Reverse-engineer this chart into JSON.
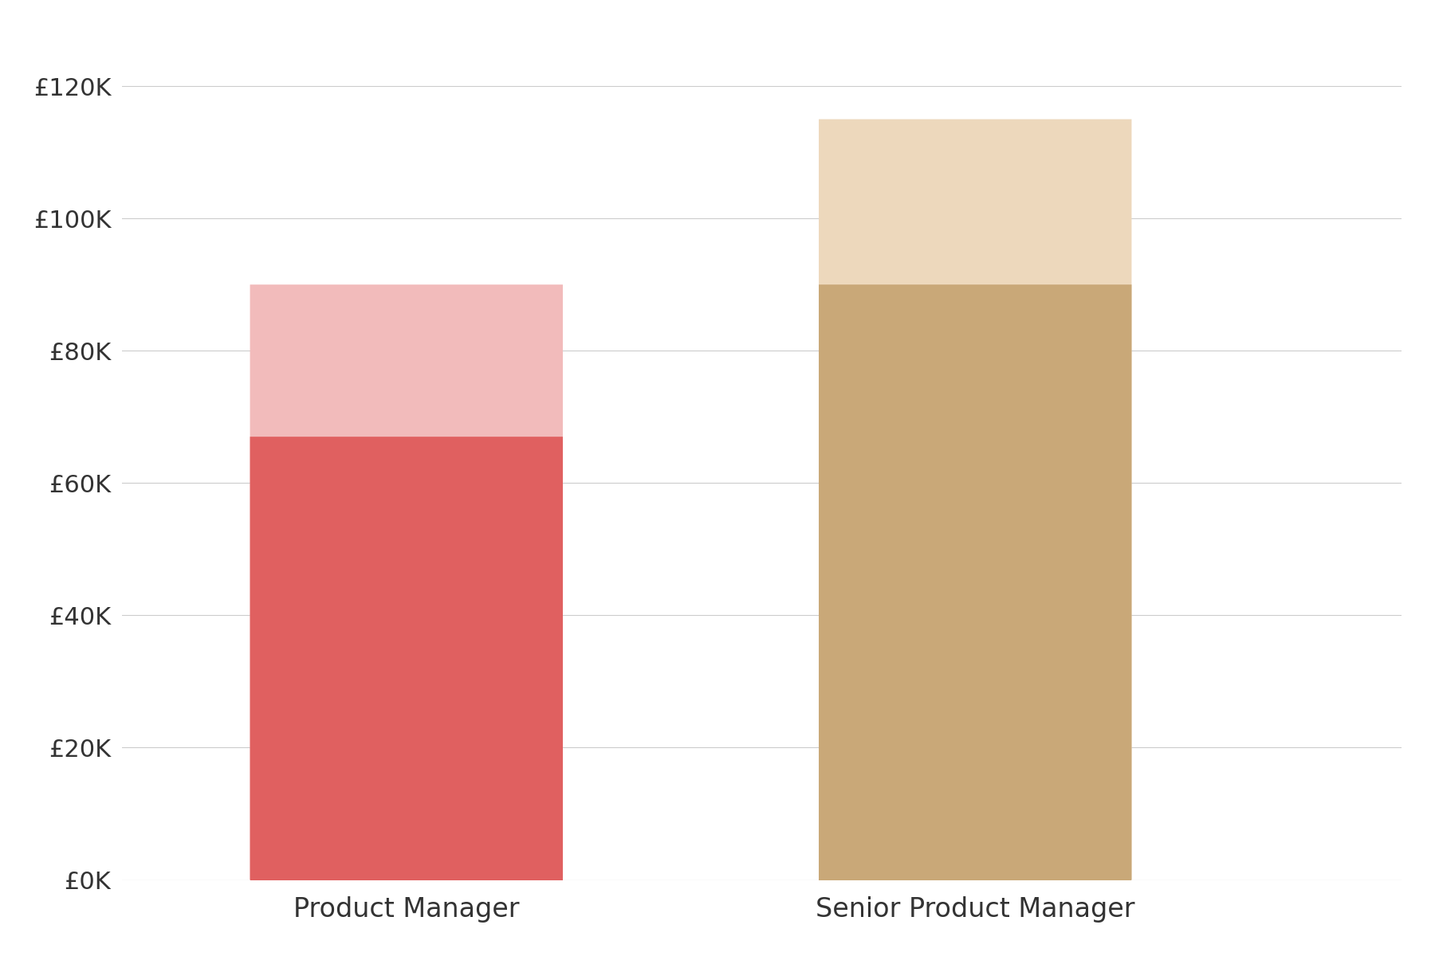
{
  "categories": [
    "Product Manager",
    "Senior Product Manager"
  ],
  "median_values": [
    67000,
    90000
  ],
  "max_values": [
    90000,
    115000
  ],
  "bar_colors_dark": [
    "#E06060",
    "#C9A878"
  ],
  "bar_colors_light": [
    "#F2BBBB",
    "#EDD8BC"
  ],
  "background_color": "#FFFFFF",
  "ylim": [
    0,
    128000
  ],
  "yticks": [
    0,
    20000,
    40000,
    60000,
    80000,
    100000,
    120000
  ],
  "ytick_labels": [
    "£0K",
    "£20K",
    "£40K",
    "£60K",
    "£80K",
    "£100K",
    "£120K"
  ],
  "grid_color": "#CCCCCC",
  "tick_label_fontsize": 22,
  "xlabel_fontsize": 24,
  "text_color": "#333333"
}
